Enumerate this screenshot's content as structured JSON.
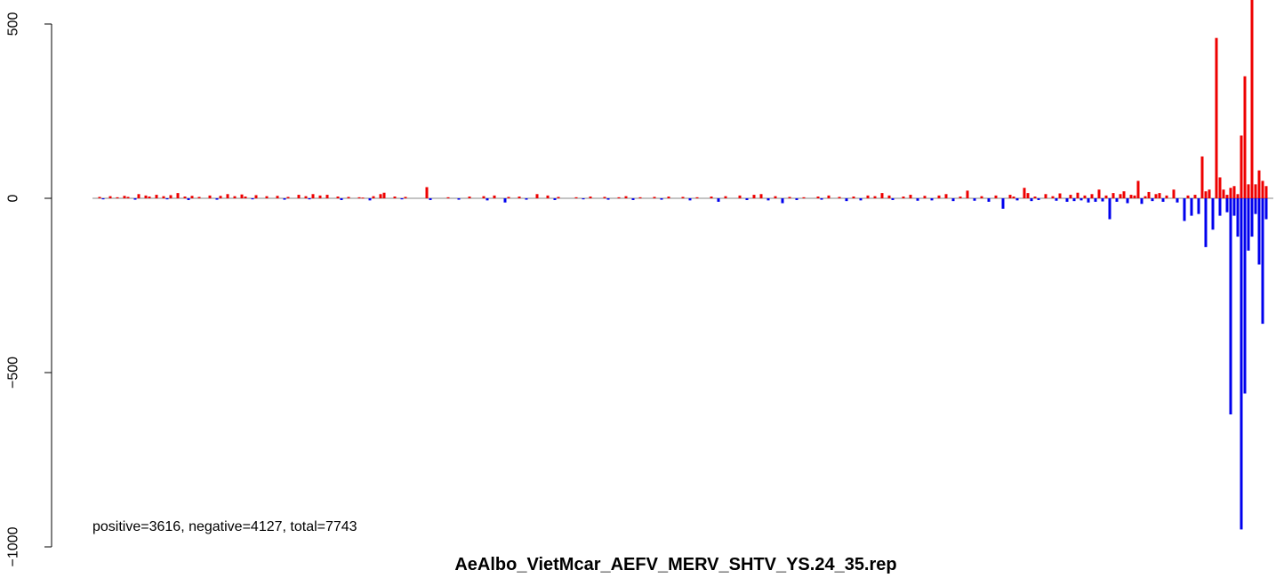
{
  "chart_data": {
    "type": "bar",
    "title": "AeAlbo_VietMcar_AEFV_MERV_SHTV_YS.24_35.rep",
    "xlabel": "",
    "ylabel": "",
    "annotation": "positive=3616, negative=4127, total=7743",
    "ylim": [
      -1000,
      500
    ],
    "yticks": [
      "500",
      "0",
      "−500",
      "−1000"
    ],
    "ytick_values": [
      500,
      0,
      -500,
      -1000
    ],
    "xlim": [
      0,
      330
    ],
    "axes_visible": [
      "left"
    ],
    "grid": false,
    "baseline": 0,
    "colors": {
      "positive": "#ee0000",
      "negative": "#0000ee",
      "baseline": "#888888"
    },
    "series": [
      {
        "sign": "positive",
        "color": "#ee0000",
        "points": [
          [
            2,
            4
          ],
          [
            5,
            6
          ],
          [
            7,
            3
          ],
          [
            9,
            7
          ],
          [
            10,
            4
          ],
          [
            13,
            12
          ],
          [
            15,
            8
          ],
          [
            16,
            5
          ],
          [
            18,
            10
          ],
          [
            20,
            6
          ],
          [
            22,
            9
          ],
          [
            24,
            15
          ],
          [
            26,
            5
          ],
          [
            28,
            7
          ],
          [
            30,
            4
          ],
          [
            33,
            8
          ],
          [
            36,
            7
          ],
          [
            38,
            12
          ],
          [
            40,
            6
          ],
          [
            42,
            11
          ],
          [
            43,
            5
          ],
          [
            46,
            9
          ],
          [
            49,
            6
          ],
          [
            52,
            7
          ],
          [
            55,
            4
          ],
          [
            58,
            10
          ],
          [
            60,
            6
          ],
          [
            62,
            12
          ],
          [
            64,
            8
          ],
          [
            66,
            10
          ],
          [
            69,
            5
          ],
          [
            72,
            4
          ],
          [
            75,
            3
          ],
          [
            76,
            2
          ],
          [
            79,
            6
          ],
          [
            81,
            12
          ],
          [
            82,
            16
          ],
          [
            85,
            5
          ],
          [
            88,
            4
          ],
          [
            94,
            32
          ],
          [
            100,
            3
          ],
          [
            106,
            5
          ],
          [
            110,
            6
          ],
          [
            113,
            8
          ],
          [
            117,
            4
          ],
          [
            120,
            5
          ],
          [
            125,
            12
          ],
          [
            128,
            8
          ],
          [
            131,
            4
          ],
          [
            136,
            3
          ],
          [
            140,
            5
          ],
          [
            144,
            4
          ],
          [
            148,
            3
          ],
          [
            150,
            6
          ],
          [
            154,
            3
          ],
          [
            158,
            4
          ],
          [
            162,
            5
          ],
          [
            166,
            4
          ],
          [
            170,
            3
          ],
          [
            174,
            5
          ],
          [
            178,
            6
          ],
          [
            182,
            8
          ],
          [
            186,
            10
          ],
          [
            188,
            12
          ],
          [
            192,
            6
          ],
          [
            196,
            4
          ],
          [
            200,
            3
          ],
          [
            204,
            5
          ],
          [
            207,
            8
          ],
          [
            210,
            4
          ],
          [
            214,
            5
          ],
          [
            218,
            8
          ],
          [
            220,
            6
          ],
          [
            222,
            15
          ],
          [
            224,
            8
          ],
          [
            228,
            5
          ],
          [
            230,
            10
          ],
          [
            234,
            7
          ],
          [
            238,
            8
          ],
          [
            240,
            12
          ],
          [
            244,
            5
          ],
          [
            246,
            22
          ],
          [
            250,
            6
          ],
          [
            254,
            8
          ],
          [
            258,
            10
          ],
          [
            259,
            5
          ],
          [
            262,
            30
          ],
          [
            263,
            15
          ],
          [
            265,
            5
          ],
          [
            268,
            12
          ],
          [
            270,
            6
          ],
          [
            272,
            14
          ],
          [
            275,
            10
          ],
          [
            277,
            16
          ],
          [
            279,
            8
          ],
          [
            281,
            12
          ],
          [
            283,
            25
          ],
          [
            285,
            8
          ],
          [
            287,
            15
          ],
          [
            289,
            12
          ],
          [
            290,
            20
          ],
          [
            292,
            10
          ],
          [
            293,
            8
          ],
          [
            294,
            50
          ],
          [
            296,
            6
          ],
          [
            297,
            18
          ],
          [
            299,
            12
          ],
          [
            300,
            15
          ],
          [
            302,
            8
          ],
          [
            304,
            25
          ],
          [
            308,
            8
          ],
          [
            310,
            10
          ],
          [
            312,
            120
          ],
          [
            313,
            20
          ],
          [
            314,
            25
          ],
          [
            316,
            460
          ],
          [
            317,
            60
          ],
          [
            318,
            25
          ],
          [
            319,
            10
          ],
          [
            320,
            30
          ],
          [
            321,
            35
          ],
          [
            322,
            12
          ],
          [
            323,
            180
          ],
          [
            324,
            350
          ],
          [
            325,
            40
          ],
          [
            326,
            580
          ],
          [
            327,
            40
          ],
          [
            328,
            80
          ],
          [
            329,
            50
          ],
          [
            330,
            35
          ]
        ]
      },
      {
        "sign": "negative",
        "color": "#0000ee",
        "points": [
          [
            3,
            -3
          ],
          [
            12,
            -4
          ],
          [
            21,
            -3
          ],
          [
            27,
            -5
          ],
          [
            35,
            -4
          ],
          [
            45,
            -3
          ],
          [
            54,
            -4
          ],
          [
            61,
            -3
          ],
          [
            70,
            -5
          ],
          [
            78,
            -6
          ],
          [
            87,
            -3
          ],
          [
            95,
            -5
          ],
          [
            103,
            -4
          ],
          [
            111,
            -6
          ],
          [
            116,
            -12
          ],
          [
            122,
            -4
          ],
          [
            130,
            -5
          ],
          [
            138,
            -3
          ],
          [
            145,
            -4
          ],
          [
            152,
            -5
          ],
          [
            160,
            -4
          ],
          [
            168,
            -6
          ],
          [
            176,
            -10
          ],
          [
            184,
            -5
          ],
          [
            190,
            -6
          ],
          [
            194,
            -14
          ],
          [
            198,
            -5
          ],
          [
            205,
            -4
          ],
          [
            212,
            -8
          ],
          [
            216,
            -6
          ],
          [
            225,
            -5
          ],
          [
            232,
            -7
          ],
          [
            236,
            -6
          ],
          [
            242,
            -8
          ],
          [
            248,
            -7
          ],
          [
            252,
            -10
          ],
          [
            256,
            -30
          ],
          [
            260,
            -6
          ],
          [
            264,
            -8
          ],
          [
            266,
            -5
          ],
          [
            271,
            -7
          ],
          [
            274,
            -10
          ],
          [
            276,
            -8
          ],
          [
            278,
            -6
          ],
          [
            280,
            -12
          ],
          [
            282,
            -10
          ],
          [
            284,
            -9
          ],
          [
            286,
            -60
          ],
          [
            288,
            -10
          ],
          [
            291,
            -14
          ],
          [
            295,
            -16
          ],
          [
            298,
            -8
          ],
          [
            301,
            -10
          ],
          [
            305,
            -12
          ],
          [
            307,
            -65
          ],
          [
            309,
            -50
          ],
          [
            311,
            -45
          ],
          [
            315,
            -80
          ],
          [
            313,
            -140
          ],
          [
            315,
            -90
          ],
          [
            317,
            -50
          ],
          [
            319,
            -40
          ],
          [
            320,
            -620
          ],
          [
            321,
            -50
          ],
          [
            322,
            -110
          ],
          [
            323,
            -950
          ],
          [
            324,
            -560
          ],
          [
            325,
            -150
          ],
          [
            326,
            -110
          ],
          [
            327,
            -45
          ],
          [
            328,
            -190
          ],
          [
            329,
            -360
          ],
          [
            330,
            -60
          ]
        ]
      }
    ]
  }
}
